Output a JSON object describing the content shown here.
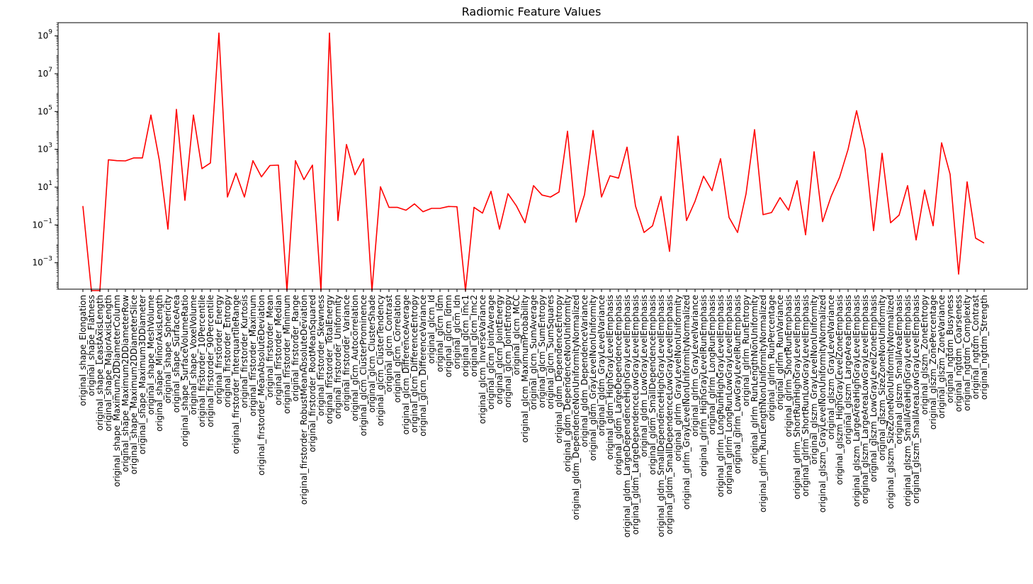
{
  "chart_data": {
    "type": "line",
    "title": "Radiomic Feature Values",
    "xlabel": "",
    "ylabel": "",
    "yscale": "log",
    "ylim": [
      4e-05,
      5000000000.0
    ],
    "y_tick_base": "10",
    "y_tick_exponents": [
      "-3",
      "-1",
      "1",
      "3",
      "5",
      "7",
      "9"
    ],
    "grid": false,
    "legend": "none",
    "line_color": "#ff0000",
    "series": [
      {
        "x": [
          "original_shape_Elongation",
          "original_shape_Flatness",
          "original_shape_LeastAxisLength",
          "original_shape_MajorAxisLength",
          "original_shape_Maximum2DDiameterColumn",
          "original_shape_Maximum2DDiameterRow",
          "original_shape_Maximum2DDiameterSlice",
          "original_shape_Maximum3DDiameter",
          "original_shape_MeshVolume",
          "original_shape_MinorAxisLength",
          "original_shape_Sphericity",
          "original_shape_SurfaceArea",
          "original_shape_SurfaceVolumeRatio",
          "original_shape_VoxelVolume",
          "original_firstorder_10Percentile",
          "original_firstorder_90Percentile",
          "original_firstorder_Energy",
          "original_firstorder_Entropy",
          "original_firstorder_InterquartileRange",
          "original_firstorder_Kurtosis",
          "original_firstorder_Maximum",
          "original_firstorder_MeanAbsoluteDeviation",
          "original_firstorder_Mean",
          "original_firstorder_Median",
          "original_firstorder_Minimum",
          "original_firstorder_Range",
          "original_firstorder_RobustMeanAbsoluteDeviation",
          "original_firstorder_RootMeanSquared",
          "original_firstorder_Skewness",
          "original_firstorder_TotalEnergy",
          "original_firstorder_Uniformity",
          "original_firstorder_Variance",
          "original_glcm_Autocorrelation",
          "original_glcm_ClusterProminence",
          "original_glcm_ClusterShade",
          "original_glcm_ClusterTendency",
          "original_glcm_Contrast",
          "original_glcm_Correlation",
          "original_glcm_DifferenceAverage",
          "original_glcm_DifferenceEntropy",
          "original_glcm_DifferenceVariance",
          "original_glcm_Id",
          "original_glcm_Idm",
          "original_glcm_Idmn",
          "original_glcm_Idn",
          "original_glcm_Imc1",
          "original_glcm_Imc2",
          "original_glcm_InverseVariance",
          "original_glcm_JointAverage",
          "original_glcm_JointEnergy",
          "original_glcm_JointEntropy",
          "original_glcm_MCC",
          "original_glcm_MaximumProbability",
          "original_glcm_SumAverage",
          "original_glcm_SumEntropy",
          "original_glcm_SumSquares",
          "original_gldm_DependenceEntropy",
          "original_gldm_DependenceNonUniformity",
          "original_gldm_DependenceNonUniformityNormalized",
          "original_gldm_DependenceVariance",
          "original_gldm_GrayLevelNonUniformity",
          "original_gldm_GrayLevelVariance",
          "original_gldm_HighGrayLevelEmphasis",
          "original_gldm_LargeDependenceEmphasis",
          "original_gldm_LargeDependenceHighGrayLevelEmphasis",
          "original_gldm_LargeDependenceLowGrayLevelEmphasis",
          "original_gldm_LowGrayLevelEmphasis",
          "original_gldm_SmallDependenceEmphasis",
          "original_gldm_SmallDependenceHighGrayLevelEmphasis",
          "original_gldm_SmallDependenceLowGrayLevelEmphasis",
          "original_glrlm_GrayLevelNonUniformity",
          "original_glrlm_GrayLevelNonUniformityNormalized",
          "original_glrlm_GrayLevelVariance",
          "original_glrlm_HighGrayLevelRunEmphasis",
          "original_glrlm_LongRunEmphasis",
          "original_glrlm_LongRunHighGrayLevelEmphasis",
          "original_glrlm_LongRunLowGrayLevelEmphasis",
          "original_glrlm_LowGrayLevelRunEmphasis",
          "original_glrlm_RunEntropy",
          "original_glrlm_RunLengthNonUniformity",
          "original_glrlm_RunLengthNonUniformityNormalized",
          "original_glrlm_RunPercentage",
          "original_glrlm_RunVariance",
          "original_glrlm_ShortRunEmphasis",
          "original_glrlm_ShortRunHighGrayLevelEmphasis",
          "original_glrlm_ShortRunLowGrayLevelEmphasis",
          "original_glszm_GrayLevelNonUniformity",
          "original_glszm_GrayLevelNonUniformityNormalized",
          "original_glszm_GrayLevelVariance",
          "original_glszm_HighGrayLevelZoneEmphasis",
          "original_glszm_LargeAreaEmphasis",
          "original_glszm_LargeAreaHighGrayLevelEmphasis",
          "original_glszm_LargeAreaLowGrayLevelEmphasis",
          "original_glszm_LowGrayLevelZoneEmphasis",
          "original_glszm_SizeZoneNonUniformity",
          "original_glszm_SizeZoneNonUniformityNormalized",
          "original_glszm_SmallAreaEmphasis",
          "original_glszm_SmallAreaHighGrayLevelEmphasis",
          "original_glszm_SmallAreaLowGrayLevelEmphasis",
          "original_glszm_ZoneEntropy",
          "original_glszm_ZonePercentage",
          "original_glszm_ZoneVariance",
          "original_ngtdm_Busyness",
          "original_ngtdm_Coarseness",
          "original_ngtdm_Complexity",
          "original_ngtdm_Contrast",
          "original_ngtdm_Strength"
        ],
        "y": [
          1.0,
          -1,
          -1,
          280,
          250,
          245,
          350,
          350,
          65000,
          250,
          0.06,
          130000,
          2.0,
          65000,
          95,
          190,
          1400000000,
          3.0,
          55,
          3.0,
          250,
          35,
          140,
          145,
          -1,
          250,
          25,
          145,
          -1,
          1400000000,
          0.17,
          1800,
          45,
          320,
          -1,
          10.5,
          0.85,
          0.85,
          0.6,
          1.3,
          0.5,
          0.75,
          0.75,
          0.95,
          0.92,
          -1,
          0.85,
          0.42,
          6.0,
          0.06,
          4.5,
          1.0,
          0.13,
          12,
          3.8,
          3.0,
          5.5,
          9000,
          0.14,
          4.0,
          10000,
          3.0,
          40,
          30,
          1300,
          1.0,
          0.04,
          0.09,
          3.2,
          0.004,
          5000,
          0.17,
          1.8,
          38,
          6.5,
          320,
          0.25,
          0.04,
          4.5,
          11000,
          0.35,
          0.45,
          2.8,
          0.6,
          22,
          0.03,
          750,
          0.15,
          3.2,
          33,
          1000,
          110000,
          1000,
          0.05,
          620,
          0.13,
          0.33,
          12,
          0.016,
          7.0,
          0.09,
          2200,
          48,
          0.00025,
          19,
          0.02,
          0.011
        ]
      }
    ]
  }
}
